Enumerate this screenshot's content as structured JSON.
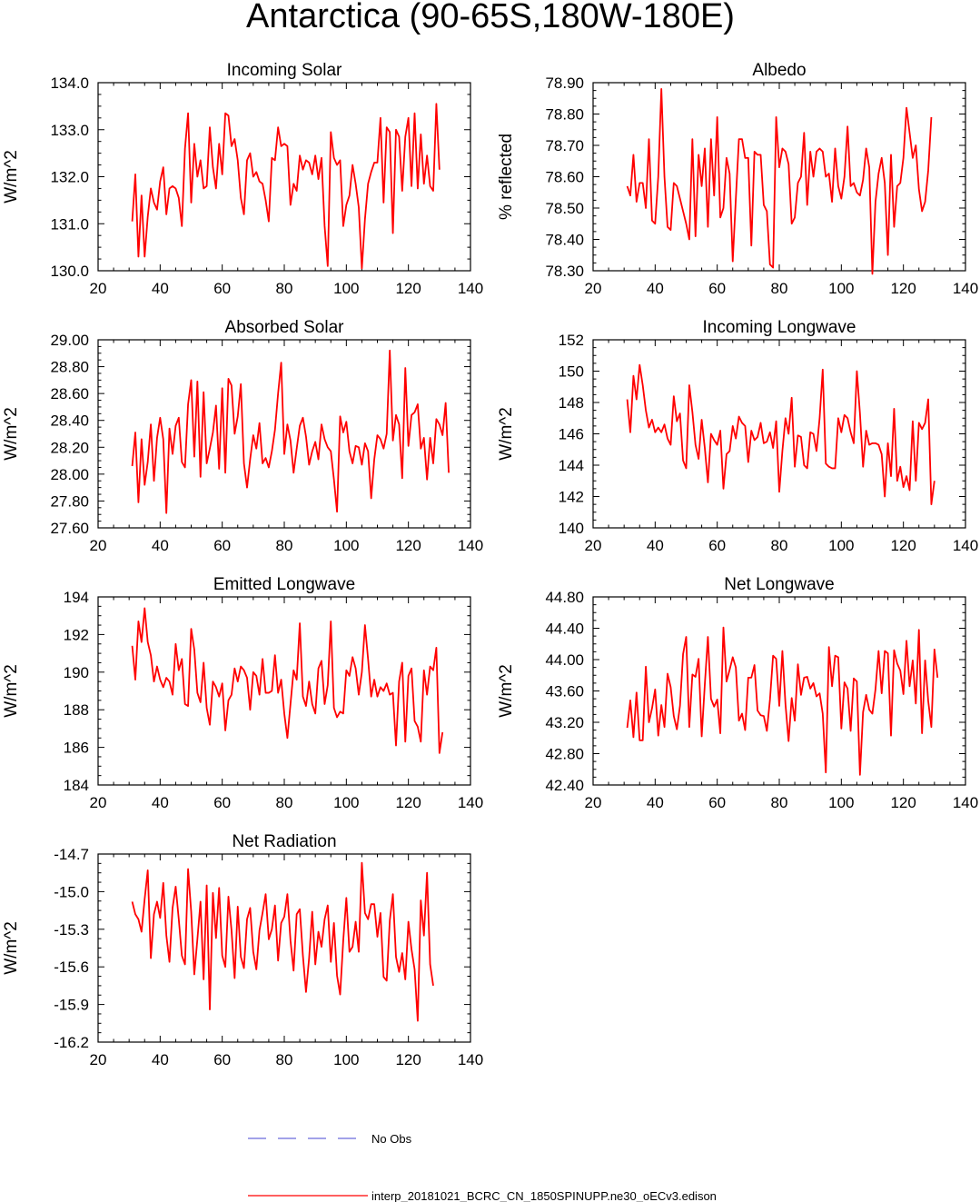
{
  "title": "Antarctica (90-65S,180W-180E)",
  "colors": {
    "model": "#ff0000",
    "obs": "#6a6adc"
  },
  "legend": {
    "obs_label": "No Obs",
    "model_label": "interp_20181021_BCRC_CN_1850SPINUPP.ne30_oECv3.edison"
  },
  "chart_data": [
    {
      "type": "line",
      "title": "Incoming Solar",
      "xlabel": "",
      "ylabel": "W/m^2",
      "xlim": [
        20,
        140
      ],
      "ylim": [
        130.0,
        134.0
      ],
      "xticks": [
        "20",
        "40",
        "60",
        "80",
        "100",
        "120",
        "140"
      ],
      "yticks": [
        "130.0",
        "131.0",
        "132.0",
        "133.0",
        "134.0"
      ],
      "x_start": 31,
      "series": [
        {
          "name": "interp_20181021_BCRC_CN_1850SPINUPP.ne30_oECv3.edison",
          "values": [
            131.05,
            132.05,
            130.3,
            131.6,
            130.3,
            131.15,
            131.75,
            131.45,
            131.3,
            131.9,
            132.2,
            131.2,
            131.75,
            131.8,
            131.75,
            131.55,
            130.95,
            132.6,
            133.35,
            131.45,
            132.7,
            132.0,
            132.35,
            131.75,
            131.8,
            133.05,
            132.2,
            131.75,
            132.7,
            132.05,
            133.35,
            133.3,
            132.65,
            132.8,
            132.35,
            131.55,
            131.2,
            132.35,
            132.5,
            132.0,
            132.1,
            131.9,
            131.85,
            131.5,
            131.05,
            132.4,
            132.35,
            133.05,
            132.65,
            132.7,
            132.65,
            131.4,
            131.85,
            131.7,
            132.45,
            132.15,
            132.35,
            132.3,
            132.05,
            132.45,
            131.95,
            132.4,
            130.95,
            130.1,
            132.95,
            132.4,
            132.25,
            132.35,
            130.95,
            131.4,
            131.6,
            132.25,
            131.85,
            131.35,
            130.05,
            131.1,
            131.85,
            132.1,
            132.3,
            132.3,
            133.25,
            131.45,
            133.05,
            132.95,
            130.8,
            133.0,
            132.85,
            131.7,
            132.85,
            133.25,
            131.8,
            133.35,
            131.75,
            132.9,
            131.85,
            132.45,
            131.8,
            131.7,
            133.55,
            132.15
          ]
        }
      ]
    },
    {
      "type": "line",
      "title": "Albedo",
      "xlabel": "",
      "ylabel": "% reflected",
      "xlim": [
        20,
        140
      ],
      "ylim": [
        78.3,
        78.9
      ],
      "xticks": [
        "20",
        "40",
        "60",
        "80",
        "100",
        "120",
        "140"
      ],
      "yticks": [
        "78.30",
        "78.40",
        "78.50",
        "78.60",
        "78.70",
        "78.80",
        "78.90"
      ],
      "x_start": 31,
      "series": [
        {
          "name": "interp_20181021_BCRC_CN_1850SPINUPP.ne30_oECv3.edison",
          "values": [
            78.57,
            78.54,
            78.67,
            78.52,
            78.58,
            78.58,
            78.5,
            78.72,
            78.46,
            78.45,
            78.6,
            78.88,
            78.6,
            78.44,
            78.43,
            78.58,
            78.57,
            78.53,
            78.49,
            78.45,
            78.4,
            78.72,
            78.41,
            78.67,
            78.57,
            78.69,
            78.44,
            78.72,
            78.54,
            78.79,
            78.47,
            78.5,
            78.66,
            78.61,
            78.33,
            78.53,
            78.72,
            78.72,
            78.66,
            78.66,
            78.38,
            78.68,
            78.67,
            78.67,
            78.51,
            78.49,
            78.32,
            78.31,
            78.79,
            78.63,
            78.69,
            78.68,
            78.64,
            78.45,
            78.47,
            78.58,
            78.6,
            78.74,
            78.51,
            78.68,
            78.6,
            78.68,
            78.69,
            78.68,
            78.6,
            78.61,
            78.52,
            78.69,
            78.57,
            78.53,
            78.6,
            78.76,
            78.57,
            78.58,
            78.55,
            78.54,
            78.59,
            78.69,
            78.63,
            78.29,
            78.52,
            78.61,
            78.66,
            78.58,
            78.35,
            78.67,
            78.44,
            78.57,
            78.58,
            78.66,
            78.82,
            78.74,
            78.66,
            78.7,
            78.56,
            78.49,
            78.52,
            78.62,
            78.79
          ]
        }
      ]
    },
    {
      "type": "line",
      "title": "Absorbed Solar",
      "xlabel": "",
      "ylabel": "W/m^2",
      "xlim": [
        20,
        140
      ],
      "ylim": [
        27.6,
        29.0
      ],
      "xticks": [
        "20",
        "40",
        "60",
        "80",
        "100",
        "120",
        "140"
      ],
      "yticks": [
        "27.60",
        "27.80",
        "28.00",
        "28.20",
        "28.40",
        "28.60",
        "28.80",
        "29.00"
      ],
      "x_start": 31,
      "series": [
        {
          "name": "interp_20181021_BCRC_CN_1850SPINUPP.ne30_oECv3.edison",
          "values": [
            28.06,
            28.31,
            27.79,
            28.26,
            27.92,
            28.09,
            28.37,
            27.95,
            28.27,
            28.42,
            28.26,
            27.71,
            28.34,
            28.15,
            28.36,
            28.42,
            28.09,
            28.05,
            28.52,
            28.7,
            28.13,
            28.69,
            27.98,
            28.61,
            28.08,
            28.19,
            28.31,
            28.51,
            28.04,
            28.64,
            28.01,
            28.71,
            28.66,
            28.3,
            28.43,
            28.67,
            28.08,
            27.9,
            28.11,
            28.29,
            28.19,
            28.38,
            28.08,
            28.12,
            28.05,
            28.17,
            28.33,
            28.6,
            28.83,
            28.15,
            28.37,
            28.25,
            28.01,
            28.19,
            28.36,
            28.42,
            28.28,
            28.07,
            28.17,
            28.24,
            28.11,
            28.37,
            28.26,
            28.2,
            28.17,
            27.96,
            27.72,
            28.43,
            28.31,
            28.39,
            28.17,
            28.08,
            28.21,
            28.2,
            28.07,
            28.23,
            28.17,
            27.82,
            28.11,
            28.29,
            28.26,
            28.19,
            28.3,
            28.92,
            28.25,
            28.44,
            28.37,
            27.97,
            28.79,
            28.21,
            28.44,
            28.46,
            28.52,
            28.19,
            28.27,
            27.96,
            28.27,
            28.08,
            28.41,
            28.37,
            28.29,
            28.53,
            28.01
          ]
        }
      ]
    },
    {
      "type": "line",
      "title": "Incoming Longwave",
      "xlabel": "",
      "ylabel": "W/m^2",
      "xlim": [
        20,
        140
      ],
      "ylim": [
        140,
        152
      ],
      "xticks": [
        "20",
        "40",
        "60",
        "80",
        "100",
        "120",
        "140"
      ],
      "yticks": [
        "140",
        "142",
        "144",
        "146",
        "148",
        "150",
        "152"
      ],
      "x_start": 31,
      "series": [
        {
          "name": "interp_20181021_BCRC_CN_1850SPINUPP.ne30_oECv3.edison",
          "values": [
            148.2,
            146.1,
            149.7,
            148.2,
            150.4,
            149.1,
            147.5,
            146.4,
            146.9,
            146.1,
            146.4,
            146.1,
            146.6,
            145.7,
            145.3,
            148.4,
            146.8,
            147.3,
            144.3,
            143.8,
            149.1,
            147.4,
            145.3,
            144.4,
            146.9,
            145.1,
            142.9,
            146.0,
            145.6,
            145.3,
            146.2,
            142.5,
            144.7,
            144.9,
            146.5,
            145.7,
            147.1,
            146.7,
            146.5,
            144.2,
            146.2,
            145.6,
            145.8,
            146.7,
            145.4,
            145.5,
            146.1,
            145.1,
            146.8,
            142.3,
            144.9,
            147.0,
            146.0,
            148.3,
            143.9,
            145.9,
            145.8,
            144.0,
            143.8,
            146.1,
            146.0,
            144.9,
            147.0,
            150.1,
            144.1,
            143.9,
            143.8,
            143.8,
            147.0,
            146.1,
            147.2,
            147.0,
            146.1,
            145.4,
            150.0,
            147.3,
            143.9,
            146.2,
            145.3,
            145.4,
            145.4,
            145.3,
            144.7,
            142.0,
            145.4,
            143.3,
            147.6,
            143.0,
            143.9,
            142.6,
            143.3,
            142.4,
            146.8,
            143.0,
            146.7,
            146.3,
            146.7,
            148.2,
            141.5,
            143.0
          ]
        }
      ]
    },
    {
      "type": "line",
      "title": "Emitted Longwave",
      "xlabel": "",
      "ylabel": "W/m^2",
      "xlim": [
        20,
        140
      ],
      "ylim": [
        184,
        194
      ],
      "xticks": [
        "20",
        "40",
        "60",
        "80",
        "100",
        "120",
        "140"
      ],
      "yticks": [
        "184",
        "186",
        "188",
        "190",
        "192",
        "194"
      ],
      "x_start": 31,
      "series": [
        {
          "name": "interp_20181021_BCRC_CN_1850SPINUPP.ne30_oECv3.edison",
          "values": [
            191.4,
            189.6,
            192.7,
            191.6,
            193.4,
            191.6,
            190.9,
            189.5,
            190.3,
            189.6,
            189.2,
            189.7,
            189.5,
            188.8,
            191.5,
            190.1,
            190.7,
            188.3,
            188.2,
            192.3,
            191.2,
            188.9,
            188.4,
            190.5,
            188.1,
            187.2,
            189.5,
            189.2,
            188.7,
            189.4,
            186.9,
            188.5,
            188.8,
            190.2,
            189.5,
            190.3,
            190.1,
            189.7,
            188.0,
            190.0,
            189.8,
            188.8,
            190.7,
            188.9,
            188.9,
            189.0,
            190.9,
            188.9,
            189.6,
            187.8,
            186.5,
            188.3,
            190.1,
            189.6,
            192.6,
            188.7,
            188.2,
            189.5,
            188.3,
            187.8,
            190.2,
            190.6,
            188.3,
            189.3,
            192.7,
            188.1,
            187.6,
            187.9,
            187.8,
            190.1,
            189.8,
            190.8,
            190.2,
            188.8,
            190.0,
            192.5,
            190.7,
            188.7,
            189.6,
            188.7,
            189.2,
            189.0,
            189.4,
            188.8,
            188.9,
            186.1,
            189.5,
            190.5,
            186.3,
            189.8,
            190.2,
            187.4,
            187.1,
            186.3,
            190.1,
            188.8,
            190.3,
            190.1,
            191.3,
            185.7,
            186.8
          ]
        }
      ]
    },
    {
      "type": "line",
      "title": "Net Longwave",
      "xlabel": "",
      "ylabel": "W/m^2",
      "xlim": [
        20,
        140
      ],
      "ylim": [
        42.4,
        44.8
      ],
      "xticks": [
        "20",
        "40",
        "60",
        "80",
        "100",
        "120",
        "140"
      ],
      "yticks": [
        "42.40",
        "42.80",
        "43.20",
        "43.60",
        "44.00",
        "44.40",
        "44.80"
      ],
      "x_start": 31,
      "series": [
        {
          "name": "interp_20181021_BCRC_CN_1850SPINUPP.ne30_oECv3.edison",
          "values": [
            43.13,
            43.48,
            43.01,
            43.58,
            42.97,
            42.97,
            43.91,
            43.2,
            43.38,
            43.62,
            43.03,
            43.42,
            43.14,
            43.82,
            43.65,
            43.28,
            43.11,
            43.41,
            44.07,
            44.29,
            43.14,
            43.81,
            43.78,
            44.01,
            43.02,
            43.68,
            44.29,
            43.5,
            43.4,
            43.49,
            43.06,
            44.41,
            43.72,
            43.87,
            44.03,
            43.9,
            43.22,
            43.31,
            43.1,
            43.77,
            43.77,
            43.93,
            43.35,
            43.29,
            43.28,
            43.09,
            43.49,
            44.05,
            44.01,
            43.41,
            44.11,
            43.43,
            42.96,
            43.51,
            43.22,
            43.94,
            43.55,
            43.77,
            43.78,
            43.63,
            43.7,
            43.53,
            43.57,
            43.31,
            42.56,
            44.16,
            43.66,
            44.05,
            44.03,
            43.12,
            43.71,
            43.63,
            43.09,
            43.76,
            43.72,
            42.53,
            43.33,
            43.55,
            43.36,
            43.31,
            43.62,
            44.11,
            43.57,
            44.11,
            44.08,
            43.03,
            44.12,
            43.95,
            43.86,
            43.56,
            44.24,
            43.66,
            43.99,
            43.44,
            44.38,
            43.06,
            43.99,
            43.47,
            43.14,
            44.13,
            43.77
          ]
        }
      ]
    },
    {
      "type": "line",
      "title": "Net Radiation",
      "xlabel": "",
      "ylabel": "W/m^2",
      "xlim": [
        20,
        140
      ],
      "ylim": [
        -16.2,
        -14.7
      ],
      "xticks": [
        "20",
        "40",
        "60",
        "80",
        "100",
        "120",
        "140"
      ],
      "yticks": [
        "-16.2",
        "-15.9",
        "-15.6",
        "-15.3",
        "-15.0",
        "-14.7"
      ],
      "x_start": 31,
      "series": [
        {
          "name": "interp_20181021_BCRC_CN_1850SPINUPP.ne30_oECv3.edison",
          "values": [
            -15.08,
            -15.18,
            -15.22,
            -15.32,
            -15.06,
            -14.83,
            -15.53,
            -15.18,
            -15.08,
            -15.21,
            -14.93,
            -15.35,
            -15.56,
            -15.13,
            -14.96,
            -15.22,
            -15.51,
            -15.58,
            -14.82,
            -15.16,
            -15.66,
            -15.38,
            -15.08,
            -15.7,
            -14.95,
            -15.94,
            -15.01,
            -15.37,
            -14.97,
            -15.51,
            -15.6,
            -15.04,
            -15.31,
            -15.69,
            -15.12,
            -15.52,
            -15.61,
            -15.22,
            -15.13,
            -15.48,
            -15.62,
            -15.31,
            -15.17,
            -15.02,
            -15.38,
            -15.3,
            -15.11,
            -15.55,
            -15.25,
            -15.2,
            -15.02,
            -15.39,
            -15.63,
            -15.18,
            -15.14,
            -15.51,
            -15.8,
            -15.53,
            -15.16,
            -15.58,
            -15.32,
            -15.44,
            -15.22,
            -15.11,
            -15.56,
            -15.25,
            -15.67,
            -15.82,
            -15.39,
            -15.05,
            -15.48,
            -15.44,
            -15.24,
            -15.48,
            -14.77,
            -15.17,
            -15.22,
            -15.1,
            -15.1,
            -15.36,
            -15.17,
            -15.68,
            -15.71,
            -15.23,
            -15.02,
            -15.52,
            -15.64,
            -15.49,
            -15.7,
            -15.24,
            -15.46,
            -15.62,
            -16.03,
            -15.07,
            -15.35,
            -14.85,
            -15.58,
            -15.75
          ]
        }
      ]
    }
  ]
}
